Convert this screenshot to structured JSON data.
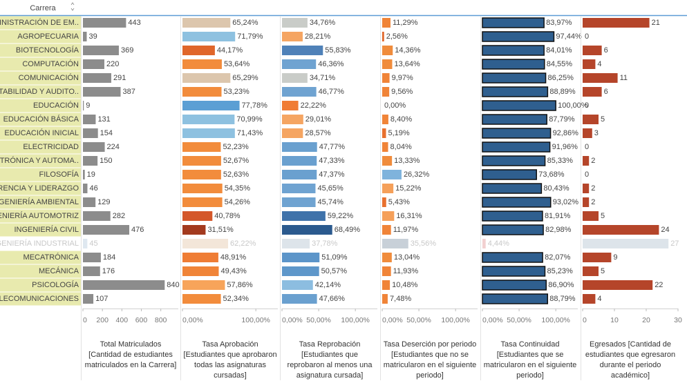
{
  "chart_data": [
    {
      "type": "bar",
      "category_header": "Carrera",
      "faded_row": 16,
      "categories": [
        "ADMINISTRACIÓN DE EM..",
        "AGROPECUARIA",
        "BIOTECNOLOGÍA",
        "COMPUTACIÓN",
        "COMUNICACIÓN",
        "CONTABILIDAD Y AUDITO..",
        "EDUCACIÓN",
        "EDUCACIÓN BÁSICA",
        "EDUCACIÓN INICIAL",
        "ELECTRICIDAD",
        "ELECTRÓNICA Y AUTOMA..",
        "FILOSOFÍA",
        "GERENCIA Y LIDERAZGO",
        "INGENIERÍA AMBIENTAL",
        "INGENIERÍA AUTOMOTRIZ",
        "INGENIERÍA CIVIL",
        "INGENIERÍA INDUSTRIAL",
        "MECATRÓNICA",
        "MECÁNICA",
        "PSICOLOGÍA",
        "TELECOMUNICACIONES"
      ],
      "x_label": "Total Matriculados [Cantidad de estudiantes matriculados en la Carrera]",
      "values": [
        443,
        39,
        369,
        220,
        291,
        387,
        9,
        131,
        154,
        224,
        150,
        19,
        46,
        129,
        282,
        476,
        45,
        184,
        176,
        840,
        107
      ],
      "colors": [
        "#8c8c8c",
        "#8c8c8c",
        "#8c8c8c",
        "#8c8c8c",
        "#8c8c8c",
        "#8c8c8c",
        "#8c8c8c",
        "#8c8c8c",
        "#8c8c8c",
        "#8c8c8c",
        "#8c8c8c",
        "#8c8c8c",
        "#8c8c8c",
        "#8c8c8c",
        "#8c8c8c",
        "#8c8c8c",
        "#dfe8f0",
        "#8c8c8c",
        "#8c8c8c",
        "#8c8c8c",
        "#8c8c8c"
      ],
      "xlim": [
        0,
        980
      ],
      "xticks": [
        0,
        200,
        400,
        600,
        800
      ]
    },
    {
      "type": "bar",
      "x_label": "Tasa Aprobación [Estudiantes que aprobaron todas las asignaturas cursadas]",
      "values": [
        65.24,
        71.79,
        44.17,
        53.64,
        65.29,
        53.23,
        77.78,
        70.99,
        71.43,
        52.23,
        52.67,
        52.63,
        54.35,
        54.26,
        40.78,
        31.51,
        62.22,
        48.91,
        49.43,
        57.86,
        52.34
      ],
      "value_labels": [
        "65,24%",
        "71,79%",
        "44,17%",
        "53,64%",
        "65,29%",
        "53,23%",
        "77,78%",
        "70,99%",
        "71,43%",
        "52,23%",
        "52,67%",
        "52,63%",
        "54,35%",
        "54,26%",
        "40,78%",
        "31,51%",
        "62,22%",
        "48,91%",
        "49,43%",
        "57,86%",
        "52,34%"
      ],
      "colors": [
        "#dcc6ad",
        "#8ec1e0",
        "#e0662a",
        "#f28c3c",
        "#dcc6ad",
        "#f28c3c",
        "#5b9fd4",
        "#8ec1e0",
        "#8ec1e0",
        "#f28c3c",
        "#f28c3c",
        "#f28c3c",
        "#f28c3c",
        "#f28c3c",
        "#d4572a",
        "#a33a1e",
        "#f3e6d9",
        "#ef7d35",
        "#f08438",
        "#f7a45a",
        "#f28c3c"
      ],
      "xlim": [
        0,
        130
      ],
      "xticks": [
        {
          "value": 0,
          "label": "0,00%"
        },
        {
          "value": 100,
          "label": "100,00%"
        }
      ]
    },
    {
      "type": "bar",
      "x_label": "Tasa Reprobación [Estudiantes que reprobaron al menos una asignatura cursada]",
      "values": [
        34.76,
        28.21,
        55.83,
        46.36,
        34.71,
        46.77,
        22.22,
        29.01,
        28.57,
        47.77,
        47.33,
        47.37,
        45.65,
        45.74,
        59.22,
        68.49,
        37.78,
        51.09,
        50.57,
        42.14,
        47.66
      ],
      "value_labels": [
        "34,76%",
        "28,21%",
        "55,83%",
        "46,36%",
        "34,71%",
        "46,77%",
        "22,22%",
        "29,01%",
        "28,57%",
        "47,77%",
        "47,33%",
        "47,37%",
        "45,65%",
        "45,74%",
        "59,22%",
        "68,49%",
        "37,78%",
        "51,09%",
        "50,57%",
        "42,14%",
        "47,66%"
      ],
      "colors": [
        "#c9ccc8",
        "#f5a562",
        "#4f81b8",
        "#6fa3d1",
        "#c9ccc8",
        "#6fa3d1",
        "#f07c34",
        "#f5a562",
        "#f5a562",
        "#6aa0cf",
        "#6aa0cf",
        "#6aa0cf",
        "#6fa3d1",
        "#6fa3d1",
        "#3f72aa",
        "#2b5a8e",
        "#dde4ea",
        "#5c95c9",
        "#5e97ca",
        "#8cbde0",
        "#6aa0cf"
      ],
      "xlim": [
        0,
        130
      ],
      "xticks": [
        {
          "value": 0,
          "label": "0,00%"
        },
        {
          "value": 50,
          "label": "50,00%"
        },
        {
          "value": 100,
          "label": "100,00%"
        }
      ]
    },
    {
      "type": "bar",
      "x_label": "Tasa Deserción por periodo [Estudiantes que no se matricularon en el siguiente periodo]",
      "values": [
        11.29,
        2.56,
        14.36,
        13.64,
        9.97,
        9.56,
        0,
        8.4,
        5.19,
        8.04,
        13.33,
        26.32,
        15.22,
        5.43,
        16.31,
        11.97,
        35.56,
        13.04,
        11.93,
        10.48,
        7.48
      ],
      "value_labels": [
        "11,29%",
        "2,56%",
        "14,36%",
        "13,64%",
        "9,97%",
        "9,56%",
        "0,00%",
        "8,40%",
        "5,19%",
        "8,04%",
        "13,33%",
        "26,32%",
        "15,22%",
        "5,43%",
        "16,31%",
        "11,97%",
        "35,56%",
        "13,04%",
        "11,93%",
        "10,48%",
        "7,48%"
      ],
      "colors": [
        "#f08438",
        "#e0662a",
        "#f08c3c",
        "#f08c3c",
        "#f08438",
        "#f08438",
        "#f08438",
        "#f08438",
        "#e8702e",
        "#f08438",
        "#f08c3c",
        "#7fb3dc",
        "#f5a05a",
        "#e8702e",
        "#f5a05a",
        "#f08438",
        "#c8d0d8",
        "#f08c3c",
        "#f08438",
        "#f08438",
        "#f08438"
      ],
      "xlim": [
        0,
        130
      ],
      "xticks": [
        {
          "value": 0,
          "label": "0,00%"
        },
        {
          "value": 50,
          "label": "50,00%"
        },
        {
          "value": 100,
          "label": "100,00%"
        }
      ]
    },
    {
      "type": "bar",
      "outline": "#111111",
      "x_label": "Tasa Continuidad [Estudiantes que se matricularon en el siguiente periodo]",
      "values": [
        83.97,
        97.44,
        84.01,
        84.55,
        86.25,
        88.89,
        100,
        87.79,
        92.86,
        91.96,
        85.33,
        73.68,
        80.43,
        93.02,
        81.91,
        82.98,
        4.44,
        82.07,
        85.23,
        86.9,
        88.79
      ],
      "value_labels": [
        "83,97%",
        "97,44%",
        "84,01%",
        "84,55%",
        "86,25%",
        "88,89%",
        "100,00%",
        "87,79%",
        "92,86%",
        "91,96%",
        "85,33%",
        "73,68%",
        "80,43%",
        "93,02%",
        "81,91%",
        "82,98%",
        "4,44%",
        "82,07%",
        "85,23%",
        "86,90%",
        "88,79%"
      ],
      "colors": [
        "#2f5f8f",
        "#2f5f8f",
        "#2f5f8f",
        "#2f5f8f",
        "#2f5f8f",
        "#2f5f8f",
        "#2f5f8f",
        "#2f5f8f",
        "#2f5f8f",
        "#2f5f8f",
        "#2f5f8f",
        "#2f5f8f",
        "#2f5f8f",
        "#2f5f8f",
        "#2f5f8f",
        "#2f5f8f",
        "#f2d0d0",
        "#2f5f8f",
        "#2f5f8f",
        "#2f5f8f",
        "#2f5f8f"
      ],
      "xlim": [
        0,
        130
      ],
      "xticks": [
        {
          "value": 0,
          "label": "0,00%"
        },
        {
          "value": 50,
          "label": "50,00%"
        },
        {
          "value": 100,
          "label": "100,00%"
        }
      ]
    },
    {
      "type": "bar",
      "x_label": "Egresados [Cantidad de estudiantes que egresaron durante el periodo académico]",
      "values": [
        21,
        0,
        6,
        4,
        11,
        6,
        0,
        5,
        3,
        0,
        2,
        0,
        2,
        2,
        5,
        24,
        27,
        9,
        5,
        22,
        4
      ],
      "colors": [
        "#b5452a",
        "#b5452a",
        "#b5452a",
        "#b5452a",
        "#b5452a",
        "#b5452a",
        "#b5452a",
        "#b5452a",
        "#b5452a",
        "#b5452a",
        "#b5452a",
        "#b5452a",
        "#b5452a",
        "#b5452a",
        "#b5452a",
        "#b5452a",
        "#dde4ea",
        "#b5452a",
        "#b5452a",
        "#b5452a",
        "#b5452a"
      ],
      "xlim": [
        0,
        30
      ],
      "xticks": [
        0,
        10,
        20,
        30
      ]
    }
  ]
}
